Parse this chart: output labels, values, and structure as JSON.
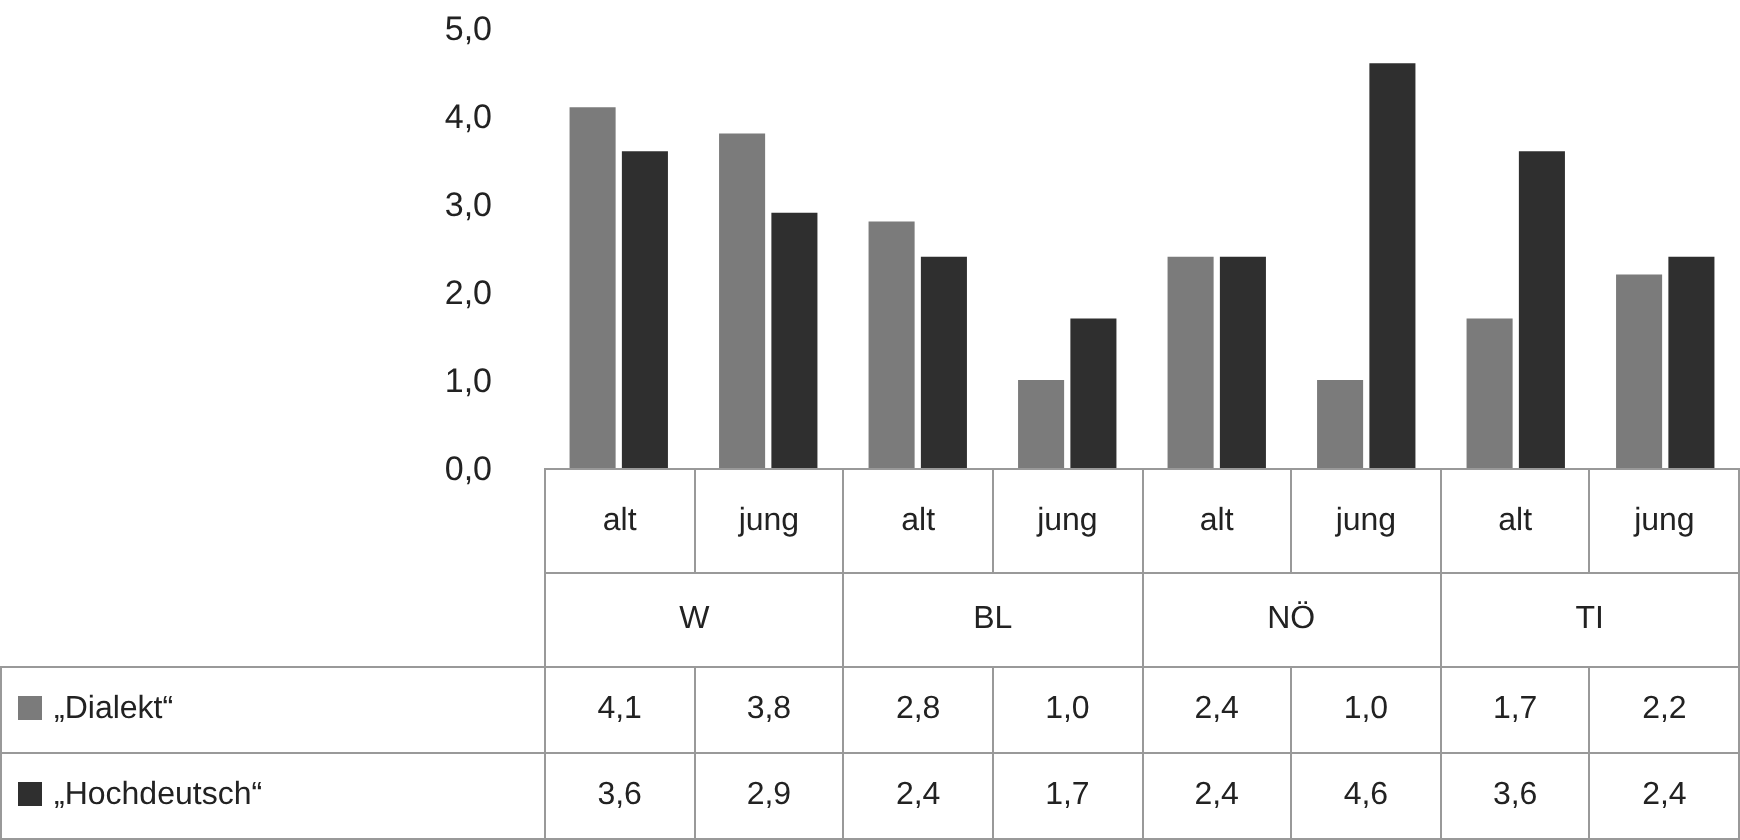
{
  "chart_data": {
    "type": "bar",
    "categories": [
      "alt",
      "jung",
      "alt",
      "jung",
      "alt",
      "jung",
      "alt",
      "jung"
    ],
    "annotations": [
      "W",
      "BL",
      "NÖ",
      "TI"
    ],
    "series": [
      {
        "name": "„Dialekt“",
        "color": "#7b7b7b",
        "values": [
          4.1,
          3.8,
          2.8,
          1.0,
          2.4,
          1.0,
          1.7,
          2.2
        ],
        "value_labels": [
          "4,1",
          "3,8",
          "2,8",
          "1,0",
          "2,4",
          "1,0",
          "1,7",
          "2,2"
        ]
      },
      {
        "name": "„Hochdeutsch“",
        "color": "#2f2f2f",
        "values": [
          3.6,
          2.9,
          2.4,
          1.7,
          2.4,
          4.6,
          3.6,
          2.4
        ],
        "value_labels": [
          "3,6",
          "2,9",
          "2,4",
          "1,7",
          "2,4",
          "4,6",
          "3,6",
          "2,4"
        ]
      }
    ],
    "ylim": [
      0,
      5
    ],
    "yticks": [
      {
        "value": 0,
        "label": "0,0"
      },
      {
        "value": 1,
        "label": "1,0"
      },
      {
        "value": 2,
        "label": "2,0"
      },
      {
        "value": 3,
        "label": "3,0"
      },
      {
        "value": 4,
        "label": "4,0"
      },
      {
        "value": 5,
        "label": "5,0"
      }
    ],
    "legend": "bottom left",
    "grid": false
  }
}
